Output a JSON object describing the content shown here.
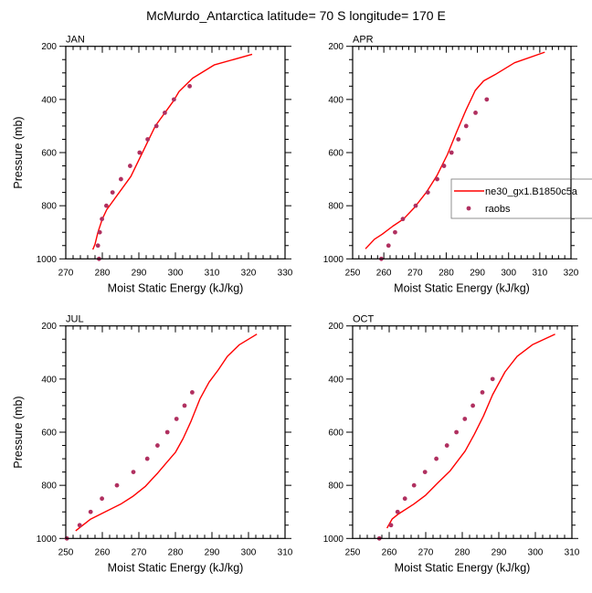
{
  "title": "McMurdo_Antarctica  latitude= 70 S longitude= 170 E",
  "colors": {
    "model": "#ff0000",
    "obs": "#b03060",
    "frame": "#000000"
  },
  "legend": {
    "items": [
      {
        "label": "ne30_gx1.B1850c5a",
        "kind": "line"
      },
      {
        "label": "raobs",
        "kind": "marker"
      }
    ],
    "placement": "right of APR panel, lower-middle"
  },
  "chart_data": [
    {
      "type": "line",
      "panel": "JAN",
      "title": "JAN",
      "xlabel": "Moist Static Energy (kJ/kg)",
      "ylabel": "Pressure (mb)",
      "xlim": [
        270,
        330
      ],
      "xticks": [
        270,
        280,
        290,
        300,
        310,
        320,
        330
      ],
      "ylim": [
        1000,
        200
      ],
      "yticks": [
        200,
        400,
        600,
        800,
        1000
      ],
      "show_xlabel": true,
      "show_ylabel": true,
      "series": [
        {
          "name": "ne30_gx1.B1850c5a",
          "kind": "line",
          "x": [
            277.4,
            278.0,
            278.8,
            280.0,
            281.2,
            287.8,
            294.5,
            299.5,
            301.0,
            304.7,
            310.6,
            321.0
          ],
          "p": [
            965,
            945,
            900,
            850,
            815,
            690,
            500,
            405,
            370,
            320,
            270,
            230
          ]
        },
        {
          "name": "raobs",
          "kind": "marker",
          "x": [
            303.9,
            299.6,
            297.1,
            294.8,
            292.4,
            290.2,
            287.6,
            285.1,
            282.8,
            281.1,
            279.9,
            279.3,
            278.8,
            279.1
          ],
          "p": [
            350,
            400,
            450,
            500,
            550,
            600,
            650,
            700,
            750,
            800,
            850,
            900,
            950,
            1000
          ]
        }
      ]
    },
    {
      "type": "line",
      "panel": "APR",
      "title": "APR",
      "xlabel": "Moist Static Energy (kJ/kg)",
      "ylabel": "",
      "xlim": [
        250,
        320
      ],
      "xticks": [
        250,
        260,
        270,
        280,
        290,
        300,
        310,
        320
      ],
      "ylim": [
        1000,
        200
      ],
      "yticks": [
        200,
        400,
        600,
        800,
        1000
      ],
      "show_xlabel": true,
      "show_ylabel": false,
      "series": [
        {
          "name": "ne30_gx1.B1850c5a",
          "kind": "line",
          "x": [
            254.1,
            257.0,
            259.5,
            262.9,
            266.3,
            269.7,
            273.6,
            277.0,
            280.4,
            283.4,
            286.3,
            289.3,
            292.0,
            295.6,
            301.9,
            311.6
          ],
          "p": [
            962,
            926,
            907,
            877,
            850,
            808,
            750,
            687,
            607,
            521,
            441,
            366,
            330,
            307,
            262,
            222
          ]
        },
        {
          "name": "raobs",
          "kind": "marker",
          "x": [
            293.0,
            289.4,
            286.4,
            283.9,
            281.7,
            279.3,
            277.1,
            274.1,
            270.2,
            266.1,
            263.6,
            261.5,
            259.2
          ],
          "p": [
            400,
            450,
            500,
            550,
            600,
            650,
            700,
            750,
            800,
            850,
            900,
            950,
            1000
          ]
        }
      ]
    },
    {
      "type": "line",
      "panel": "JUL",
      "title": "JUL",
      "xlabel": "Moist Static Energy (kJ/kg)",
      "ylabel": "Pressure (mb)",
      "xlim": [
        250,
        310
      ],
      "xticks": [
        250,
        260,
        270,
        280,
        290,
        300,
        310
      ],
      "ylim": [
        1000,
        200
      ],
      "yticks": [
        200,
        400,
        600,
        800,
        1000
      ],
      "show_xlabel": true,
      "show_ylabel": true,
      "series": [
        {
          "name": "ne30_gx1.B1850c5a",
          "kind": "line",
          "x": [
            252.7,
            256.7,
            260.0,
            265.0,
            268.3,
            271.7,
            275.0,
            277.5,
            280.0,
            282.1,
            284.2,
            286.7,
            289.2,
            291.7,
            294.2,
            297.5,
            302.3
          ],
          "p": [
            971,
            928,
            905,
            871,
            842,
            805,
            756,
            716,
            676,
            624,
            561,
            475,
            412,
            366,
            315,
            271,
            231
          ]
        },
        {
          "name": "raobs",
          "kind": "marker",
          "x": [
            284.6,
            282.5,
            280.3,
            277.8,
            275.1,
            272.3,
            268.5,
            264.0,
            259.9,
            256.8,
            253.8,
            250.3
          ],
          "p": [
            450,
            500,
            550,
            600,
            650,
            700,
            750,
            800,
            850,
            900,
            950,
            1000
          ]
        }
      ]
    },
    {
      "type": "line",
      "panel": "OCT",
      "title": "OCT",
      "xlabel": "Moist Static Energy (kJ/kg)",
      "ylabel": "",
      "xlim": [
        250,
        310
      ],
      "xticks": [
        250,
        260,
        270,
        280,
        290,
        300,
        310
      ],
      "ylim": [
        1000,
        200
      ],
      "yticks": [
        200,
        400,
        600,
        800,
        1000
      ],
      "show_xlabel": true,
      "show_ylabel": false,
      "series": [
        {
          "name": "ne30_gx1.B1850c5a",
          "kind": "line",
          "x": [
            259.4,
            260.8,
            262.5,
            266.7,
            270.0,
            273.3,
            276.7,
            280.8,
            283.3,
            285.8,
            288.3,
            291.7,
            295.0,
            299.2,
            305.4
          ],
          "p": [
            961,
            927,
            908,
            871,
            837,
            791,
            745,
            671,
            608,
            539,
            459,
            373,
            315,
            271,
            231
          ]
        },
        {
          "name": "raobs",
          "kind": "marker",
          "x": [
            288.3,
            285.5,
            282.9,
            280.7,
            278.4,
            275.8,
            272.9,
            269.8,
            266.8,
            264.3,
            262.3,
            260.5,
            257.3
          ],
          "p": [
            400,
            450,
            500,
            550,
            600,
            650,
            700,
            750,
            800,
            850,
            900,
            950,
            1000
          ]
        }
      ]
    }
  ]
}
